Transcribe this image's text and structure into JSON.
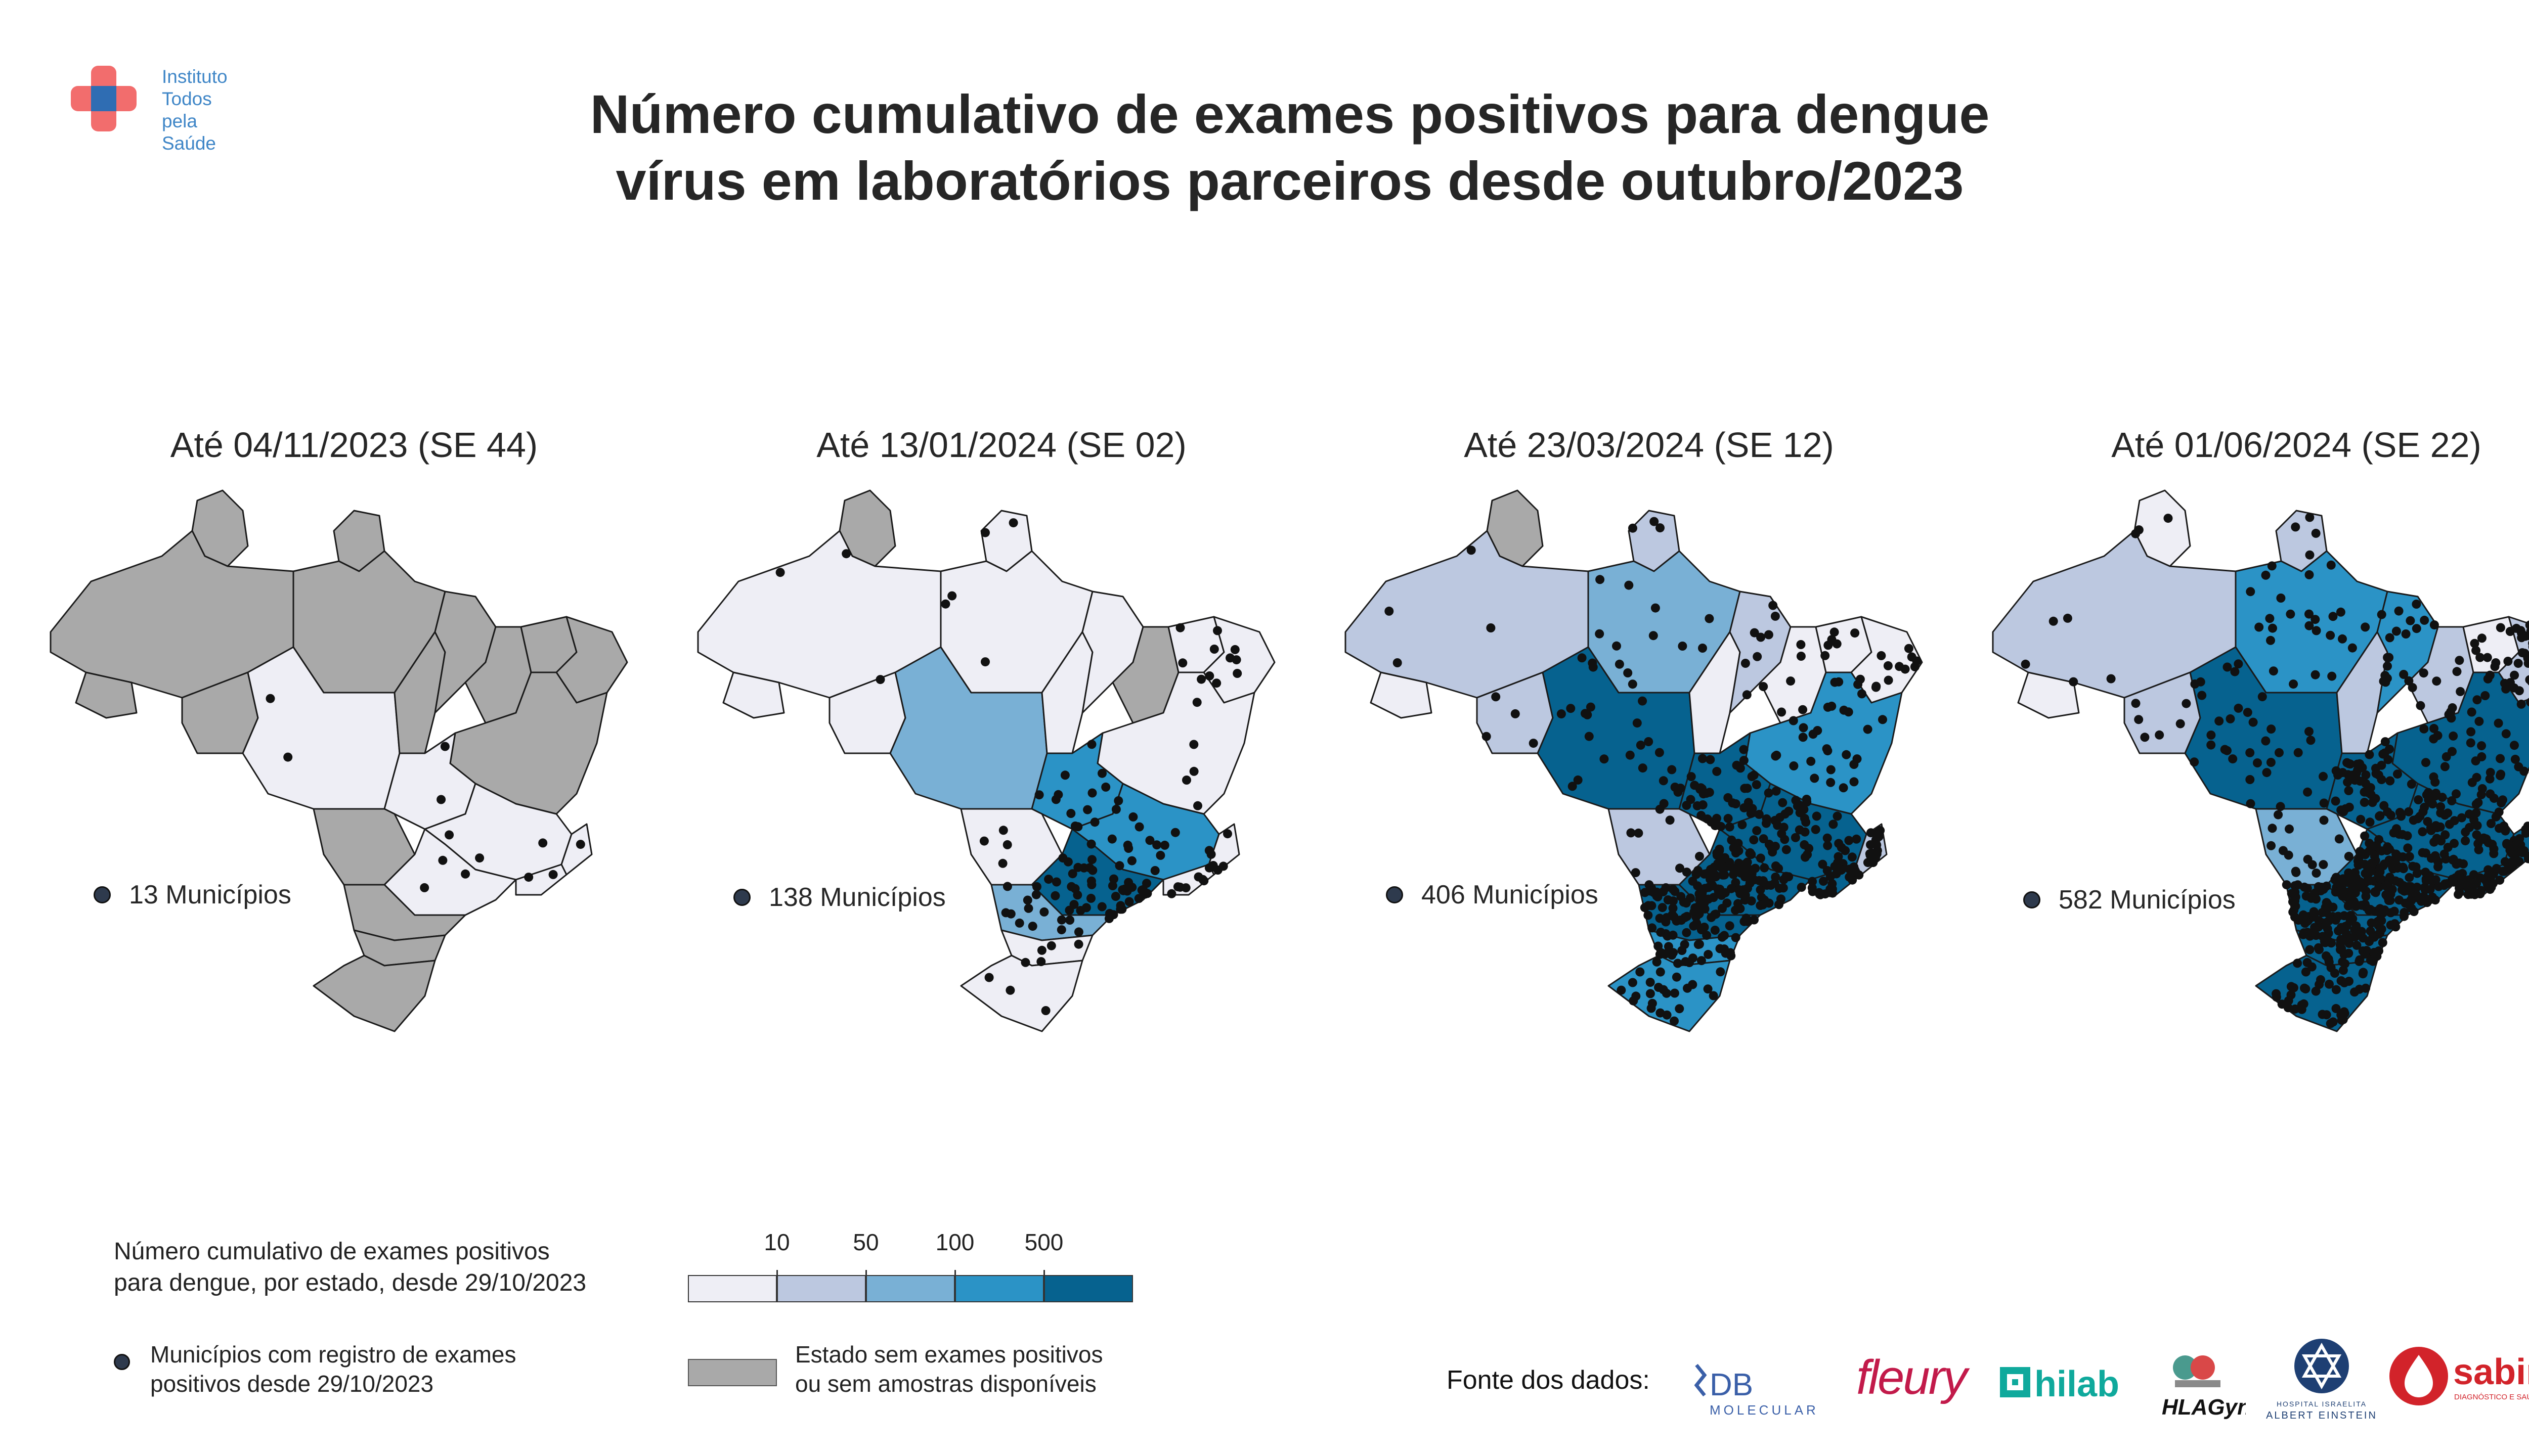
{
  "org_logo": {
    "lines": [
      "Instituto",
      "Todos",
      "pela",
      "Saúde"
    ]
  },
  "title": {
    "line1": "Número cumulativo de exames positivos para dengue",
    "line2": "vírus em laboratórios parceiros desde outubro/2023"
  },
  "colors": {
    "no_data": "#a9a9a9",
    "class_lt10": "#eeeef5",
    "class_10_50": "#bcc8e0",
    "class_50_100": "#79b0d5",
    "class_100_500": "#2b93c6",
    "class_gt500": "#06628f",
    "municipality_dot": "#111111"
  },
  "panels": [
    {
      "title": "Até 04/11/2023 (SE 44)",
      "municipalities": "13 Municípios"
    },
    {
      "title": "Até 13/01/2024 (SE 02)",
      "municipalities": "138 Municípios"
    },
    {
      "title": "Até 23/03/2024 (SE 12)",
      "municipalities": "406 Municípios"
    },
    {
      "title": "Até 01/06/2024 (SE 22)",
      "municipalities": "582 Municípios"
    }
  ],
  "legend": {
    "scale_title_line1": "Número cumulativo de exames positivos",
    "scale_title_line2": "para dengue, por estado, desde 29/10/2023",
    "breaks": [
      "10",
      "50",
      "100",
      "500"
    ],
    "dots_line1": "Municípios com registro de exames",
    "dots_line2": "positivos desde 29/10/2023",
    "nodata_line1": "Estado sem exames positivos",
    "nodata_line2": "ou sem amostras disponíveis"
  },
  "sources": {
    "label": "Fonte dos dados:",
    "logos": {
      "db": {
        "main": "DB",
        "sub": "MOLECULAR"
      },
      "fleury": "fleury",
      "hilab": "hilab",
      "hlagyn": "HLAGyn",
      "einstein": {
        "top": "HOSPITAL ISRAELITA",
        "bottom": "ALBERT EINSTEIN"
      },
      "sabin": {
        "main": "sabin",
        "sub": "DIAGNÓSTICO E SAÚDE"
      }
    }
  }
}
